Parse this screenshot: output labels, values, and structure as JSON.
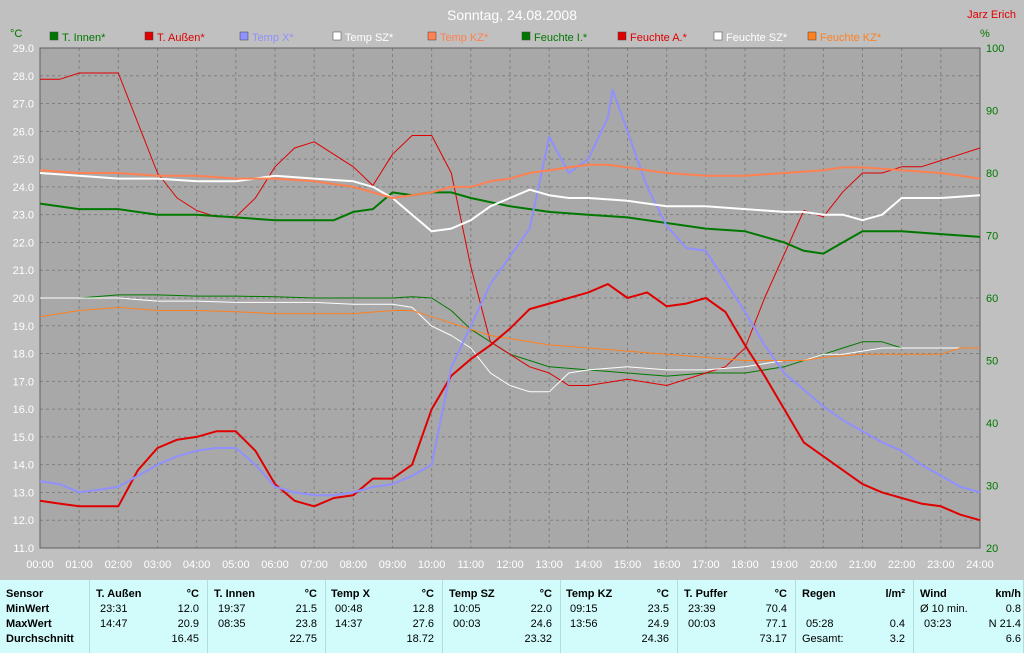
{
  "chart_data": {
    "type": "line",
    "title": "Sonntag, 24.08.2008",
    "watermark": "Jarz Erich",
    "left_axis": {
      "label": "°C",
      "min": 11.0,
      "max": 29.0,
      "step": 1.0
    },
    "right_axis": {
      "label": "%",
      "min": 20,
      "max": 100,
      "step": 10
    },
    "x_axis": {
      "min": 0,
      "max": 24,
      "tick_labels": [
        "00:00",
        "01:00",
        "02:00",
        "03:00",
        "04:00",
        "05:00",
        "06:00",
        "07:00",
        "08:00",
        "09:00",
        "10:00",
        "11:00",
        "12:00",
        "13:00",
        "14:00",
        "15:00",
        "16:00",
        "17:00",
        "18:00",
        "19:00",
        "20:00",
        "21:00",
        "22:00",
        "23:00",
        "24:00"
      ]
    },
    "grid": true,
    "legend_position": "top",
    "series": [
      {
        "name": "T. Innen*",
        "axis": "left",
        "color": "#007800",
        "width": 2,
        "x": [
          0,
          1,
          2,
          3,
          4,
          5,
          6,
          7,
          7.5,
          8,
          8.5,
          9,
          9.5,
          10,
          10.5,
          11,
          12,
          13,
          14,
          15,
          16,
          17,
          18,
          19,
          19.5,
          20,
          20.5,
          21,
          21.5,
          22,
          23,
          24
        ],
        "y": [
          23.4,
          23.2,
          23.2,
          23.0,
          23.0,
          22.9,
          22.8,
          22.8,
          22.8,
          23.1,
          23.2,
          23.8,
          23.7,
          23.8,
          23.8,
          23.6,
          23.3,
          23.1,
          23.0,
          22.9,
          22.7,
          22.5,
          22.4,
          22.0,
          21.7,
          21.6,
          22.0,
          22.4,
          22.4,
          22.4,
          22.3,
          22.2
        ]
      },
      {
        "name": "T. Außen*",
        "axis": "left",
        "color": "#e00000",
        "width": 2,
        "x": [
          0,
          0.5,
          1,
          1.5,
          2,
          2.5,
          3,
          3.5,
          4,
          4.5,
          5,
          5.5,
          6,
          6.5,
          7,
          7.5,
          8,
          8.5,
          9,
          9.5,
          10,
          10.5,
          11,
          11.5,
          12,
          12.5,
          13,
          13.5,
          14,
          14.5,
          15,
          15.5,
          16,
          16.5,
          17,
          17.5,
          18,
          18.5,
          19,
          19.5,
          20,
          20.5,
          21,
          21.5,
          22,
          22.5,
          23,
          23.5,
          24
        ],
        "y": [
          12.7,
          12.6,
          12.5,
          12.5,
          12.5,
          13.8,
          14.6,
          14.9,
          15.0,
          15.2,
          15.2,
          14.5,
          13.3,
          12.7,
          12.5,
          12.8,
          12.9,
          13.5,
          13.5,
          14.0,
          16.0,
          17.2,
          17.8,
          18.3,
          18.9,
          19.6,
          19.8,
          20.0,
          20.2,
          20.5,
          20.0,
          20.2,
          19.7,
          19.8,
          20.0,
          19.5,
          18.3,
          17.2,
          16.0,
          14.8,
          14.3,
          13.8,
          13.3,
          13.0,
          12.8,
          12.6,
          12.5,
          12.2,
          12.0
        ]
      },
      {
        "name": "Temp X*",
        "axis": "left",
        "color": "#9090ff",
        "width": 2,
        "x": [
          0,
          0.5,
          1,
          1.5,
          2,
          2.5,
          3,
          3.5,
          4,
          4.5,
          5,
          5.5,
          6,
          6.5,
          7,
          7.5,
          8,
          8.5,
          9,
          9.5,
          10,
          10.5,
          11,
          11.5,
          12,
          12.5,
          13,
          13.5,
          14,
          14.5,
          14.62,
          15,
          15.5,
          16,
          16.5,
          17,
          17.5,
          18,
          18.5,
          19,
          19.5,
          20,
          20.5,
          21,
          21.5,
          22,
          22.5,
          23,
          23.5,
          24
        ],
        "y": [
          13.4,
          13.3,
          13.0,
          13.1,
          13.2,
          13.6,
          14.0,
          14.3,
          14.5,
          14.6,
          14.6,
          14.0,
          13.2,
          13.0,
          12.9,
          12.9,
          13.0,
          13.2,
          13.3,
          13.6,
          14.0,
          17.5,
          19.0,
          20.5,
          21.5,
          22.5,
          25.8,
          24.5,
          25.0,
          26.5,
          27.5,
          26.0,
          24.0,
          22.6,
          21.8,
          21.7,
          20.6,
          19.5,
          18.3,
          17.3,
          16.7,
          16.1,
          15.6,
          15.2,
          14.8,
          14.5,
          14.0,
          13.6,
          13.2,
          13.0
        ]
      },
      {
        "name": "Temp SZ*",
        "axis": "left",
        "color": "#ffffff",
        "width": 2,
        "x": [
          0,
          1,
          2,
          3,
          4,
          5,
          6,
          7,
          8,
          8.5,
          9,
          9.5,
          10,
          10.5,
          11,
          11.5,
          12,
          12.5,
          13,
          13.5,
          14,
          15,
          16,
          17,
          18,
          19,
          19.5,
          20,
          20.5,
          21,
          21.5,
          22,
          23,
          24
        ],
        "y": [
          24.5,
          24.4,
          24.3,
          24.3,
          24.2,
          24.2,
          24.4,
          24.3,
          24.2,
          24.0,
          23.6,
          23.0,
          22.4,
          22.5,
          22.8,
          23.3,
          23.6,
          23.9,
          23.7,
          23.6,
          23.6,
          23.5,
          23.3,
          23.3,
          23.2,
          23.1,
          23.1,
          23.0,
          23.0,
          22.8,
          23.0,
          23.6,
          23.6,
          23.7
        ]
      },
      {
        "name": "Temp KZ*",
        "axis": "left",
        "color": "#ff8050",
        "width": 2,
        "x": [
          0,
          1,
          2,
          3,
          4,
          5,
          6,
          7,
          8,
          8.5,
          9,
          9.5,
          10,
          10.5,
          11,
          11.5,
          12,
          12.5,
          13,
          13.5,
          14,
          14.5,
          15,
          16,
          17,
          18,
          19,
          20,
          20.5,
          21,
          22,
          23,
          24
        ],
        "y": [
          24.6,
          24.5,
          24.5,
          24.4,
          24.4,
          24.3,
          24.3,
          24.2,
          24.0,
          23.8,
          23.6,
          23.7,
          23.8,
          24.0,
          24.0,
          24.2,
          24.3,
          24.5,
          24.6,
          24.7,
          24.8,
          24.8,
          24.7,
          24.5,
          24.4,
          24.4,
          24.5,
          24.6,
          24.7,
          24.7,
          24.6,
          24.5,
          24.3
        ]
      },
      {
        "name": "Feuchte I.*",
        "axis": "right",
        "color": "#007800",
        "width": 1,
        "x": [
          0,
          1,
          2,
          3,
          4,
          5,
          6,
          7,
          8,
          9,
          9.5,
          10,
          10.5,
          11,
          11.5,
          12,
          12.5,
          13,
          14,
          15,
          16,
          17,
          18,
          19,
          20,
          20.5,
          21,
          21.5,
          22,
          23,
          24
        ],
        "y": [
          60,
          60,
          60.5,
          60.5,
          60.3,
          60.3,
          60.2,
          60.0,
          60.0,
          60.0,
          60.2,
          60.0,
          58,
          55,
          53,
          51,
          50,
          49,
          48.5,
          48,
          47.5,
          48,
          48,
          49,
          51,
          52,
          53,
          53,
          52,
          52,
          52
        ]
      },
      {
        "name": "Feuchte A.*",
        "axis": "right",
        "color": "#e00000",
        "width": 1,
        "x": [
          0,
          0.5,
          1,
          1.5,
          2,
          2.5,
          3,
          3.5,
          4,
          4.5,
          5,
          5.5,
          6,
          6.5,
          7,
          7.5,
          8,
          8.5,
          9,
          9.5,
          10,
          10.5,
          11,
          11.5,
          12,
          12.5,
          13,
          13.5,
          14,
          15,
          16,
          17,
          17.5,
          18,
          18.5,
          19,
          19.5,
          20,
          20.5,
          21,
          21.5,
          22,
          22.5,
          23,
          23.5,
          24
        ],
        "y": [
          95,
          95,
          96,
          96,
          96,
          88,
          80,
          76,
          74,
          73,
          73,
          76,
          81,
          84,
          85,
          83,
          81,
          78,
          83,
          86,
          86,
          80,
          65,
          53,
          51,
          49,
          48,
          46,
          46,
          47,
          46,
          48,
          49,
          52,
          60,
          67,
          74,
          73,
          77,
          80,
          80,
          81,
          81,
          82,
          83,
          84
        ]
      },
      {
        "name": "Feuchte SZ*",
        "axis": "right",
        "color": "#ffffff",
        "width": 1,
        "x": [
          0,
          1,
          2,
          3,
          4,
          5,
          6,
          7,
          8,
          9,
          9.5,
          10,
          10.5,
          11,
          11.5,
          12,
          12.5,
          13,
          13.5,
          14,
          15,
          16,
          17,
          18,
          19,
          19.5,
          20,
          20.5,
          21,
          21.5,
          22,
          23,
          24
        ],
        "y": [
          60,
          60,
          60,
          59.5,
          59.5,
          59.3,
          59.3,
          59.3,
          59.0,
          59.0,
          58.5,
          55.5,
          54,
          52,
          48,
          46,
          45,
          45,
          48,
          48.5,
          49,
          48.5,
          48.5,
          49,
          50,
          50,
          51,
          51,
          51.5,
          52,
          52,
          52,
          52
        ]
      },
      {
        "name": "Feuchte KZ*",
        "axis": "right",
        "color": "#ff8020",
        "width": 1,
        "x": [
          0,
          1,
          2,
          3,
          4,
          5,
          6,
          7,
          8,
          9,
          9.5,
          10,
          10.5,
          11,
          11.5,
          12,
          12.5,
          13,
          14,
          15,
          16,
          17,
          18,
          19,
          19.5,
          20,
          21,
          22,
          23,
          23.5,
          24
        ],
        "y": [
          57,
          58,
          58.5,
          58,
          58,
          57.8,
          57.5,
          57.5,
          57.5,
          58,
          58,
          57,
          56,
          55,
          54,
          53.5,
          53,
          52.5,
          52,
          51.5,
          51,
          50.5,
          50,
          50,
          50,
          50.5,
          51,
          51,
          51,
          52,
          52
        ]
      }
    ]
  },
  "stats": {
    "sensor_label": "Sensor",
    "row_labels": [
      "MinWert",
      "MaxWert",
      "Durchschnitt"
    ],
    "columns": [
      {
        "name": "T. Außen",
        "unit": "°C",
        "min_time": "23:31",
        "min": "12.0",
        "max_time": "14:47",
        "max": "20.9",
        "avg": "16.45"
      },
      {
        "name": "T. Innen",
        "unit": "°C",
        "min_time": "19:37",
        "min": "21.5",
        "max_time": "08:35",
        "max": "23.8",
        "avg": "22.75"
      },
      {
        "name": "Temp X",
        "unit": "°C",
        "min_time": "00:48",
        "min": "12.8",
        "max_time": "14:37",
        "max": "27.6",
        "avg": "18.72"
      },
      {
        "name": "Temp SZ",
        "unit": "°C",
        "min_time": "10:05",
        "min": "22.0",
        "max_time": "00:03",
        "max": "24.6",
        "avg": "23.32"
      },
      {
        "name": "Temp KZ",
        "unit": "°C",
        "min_time": "09:15",
        "min": "23.5",
        "max_time": "13:56",
        "max": "24.9",
        "avg": "24.36"
      },
      {
        "name": "T. Puffer",
        "unit": "°C",
        "min_time": "23:39",
        "min": "70.4",
        "max_time": "00:03",
        "max": "77.1",
        "avg": "73.17"
      }
    ],
    "rain": {
      "name": "Regen",
      "unit": "l/m²",
      "time": "05:28",
      "value": "0.4",
      "total_label": "Gesamt:",
      "total": "3.2"
    },
    "wind": {
      "name": "Wind",
      "unit": "km/h",
      "avg_label": "Ø 10 min.",
      "avg": "0.8",
      "time": "03:23",
      "max": "N 21.4",
      "mean": "6.6"
    }
  }
}
